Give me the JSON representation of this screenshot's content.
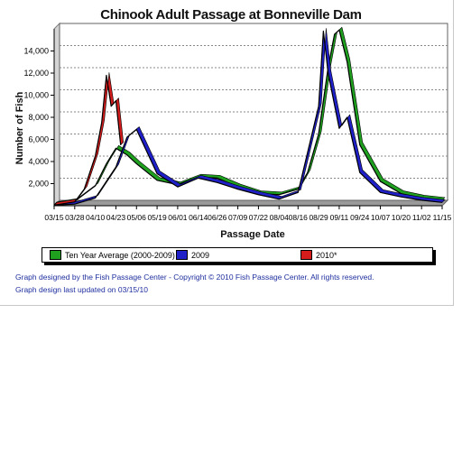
{
  "chart_data": {
    "type": "line",
    "title": "Chinook Adult Passage at Bonneville Dam",
    "xlabel": "Passage Date",
    "ylabel": "Number of Fish",
    "ylim": [
      0,
      16000
    ],
    "yticks": [
      2000,
      4000,
      6000,
      8000,
      10000,
      12000,
      14000
    ],
    "ytick_labels": [
      "2,000",
      "4,000",
      "6,000",
      "8,000",
      "10,000",
      "12,000",
      "14,000"
    ],
    "xtick_labels": [
      "03/15",
      "03/28",
      "04/10",
      "04/23",
      "05/06",
      "05/19",
      "06/01",
      "06/14",
      "06/26",
      "07/09",
      "07/22",
      "08/04",
      "08/16",
      "08/29",
      "09/11",
      "09/24",
      "10/07",
      "10/20",
      "11/02",
      "11/15"
    ],
    "grid": true,
    "legend_position": "bottom",
    "series": [
      {
        "name": "Ten Year Average (2000-2009)",
        "color": "#1fa01f",
        "points": [
          [
            "03/15",
            100
          ],
          [
            "03/28",
            400
          ],
          [
            "04/10",
            1800
          ],
          [
            "04/17",
            3800
          ],
          [
            "04/23",
            5200
          ],
          [
            "04/30",
            4600
          ],
          [
            "05/06",
            3800
          ],
          [
            "05/19",
            2300
          ],
          [
            "06/01",
            1900
          ],
          [
            "06/14",
            2600
          ],
          [
            "06/26",
            2500
          ],
          [
            "07/09",
            1700
          ],
          [
            "07/22",
            1100
          ],
          [
            "08/04",
            1000
          ],
          [
            "08/16",
            1500
          ],
          [
            "08/22",
            3000
          ],
          [
            "08/29",
            6500
          ],
          [
            "09/04",
            12500
          ],
          [
            "09/08",
            15500
          ],
          [
            "09/11",
            15900
          ],
          [
            "09/16",
            13000
          ],
          [
            "09/24",
            5500
          ],
          [
            "10/07",
            2200
          ],
          [
            "10/20",
            1100
          ],
          [
            "11/02",
            700
          ],
          [
            "11/15",
            500
          ]
        ]
      },
      {
        "name": "2009",
        "color": "#2020c8",
        "points": [
          [
            "03/15",
            50
          ],
          [
            "03/28",
            150
          ],
          [
            "04/10",
            700
          ],
          [
            "04/23",
            3500
          ],
          [
            "04/30",
            6200
          ],
          [
            "05/06",
            6900
          ],
          [
            "05/19",
            2900
          ],
          [
            "06/01",
            1700
          ],
          [
            "06/14",
            2500
          ],
          [
            "06/26",
            2100
          ],
          [
            "07/09",
            1500
          ],
          [
            "07/22",
            1000
          ],
          [
            "08/04",
            600
          ],
          [
            "08/16",
            1200
          ],
          [
            "08/29",
            9000
          ],
          [
            "09/01",
            15800
          ],
          [
            "09/04",
            12000
          ],
          [
            "09/11",
            7000
          ],
          [
            "09/16",
            8000
          ],
          [
            "09/24",
            3000
          ],
          [
            "10/07",
            1200
          ],
          [
            "10/20",
            800
          ],
          [
            "11/02",
            500
          ],
          [
            "11/15",
            300
          ]
        ]
      },
      {
        "name": "2010*",
        "color": "#d41c1c",
        "points": [
          [
            "03/15",
            50
          ],
          [
            "03/28",
            350
          ],
          [
            "04/03",
            1500
          ],
          [
            "04/10",
            4500
          ],
          [
            "04/14",
            7500
          ],
          [
            "04/17",
            11800
          ],
          [
            "04/20",
            9000
          ],
          [
            "04/23",
            9500
          ],
          [
            "04/26",
            5500
          ]
        ]
      }
    ]
  },
  "footer": {
    "credit": "Graph designed by the Fish Passage Center - Copyright © 2010 Fish Passage Center. All rights reserved.",
    "updated": "Graph design last updated on 03/15/10"
  }
}
